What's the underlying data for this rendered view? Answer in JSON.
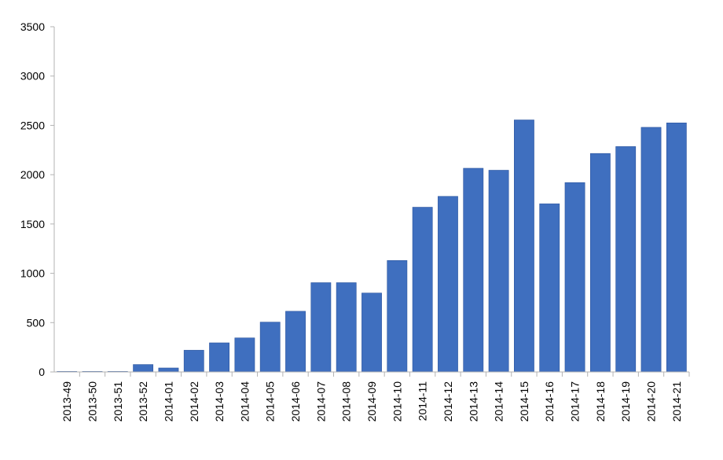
{
  "chart_data": {
    "type": "bar",
    "title": "",
    "xlabel": "",
    "ylabel": "",
    "ylim": [
      0,
      3500
    ],
    "yticks": [
      0,
      500,
      1000,
      1500,
      2000,
      2500,
      3000,
      3500
    ],
    "grid": false,
    "legend": "none",
    "bar_color": "#3f6fbf",
    "bar_edge_color": "#2c559e",
    "axis_color": "#b3b3b3",
    "categories": [
      "2013-49",
      "2013-50",
      "2013-51",
      "2013-52",
      "2014-01",
      "2014-02",
      "2014-03",
      "2014-04",
      "2014-05",
      "2014-06",
      "2014-07",
      "2014-08",
      "2014-09",
      "2014-10",
      "2014-11",
      "2014-12",
      "2014-13",
      "2014-14",
      "2014-15",
      "2014-16",
      "2014-17",
      "2014-18",
      "2014-19",
      "2014-20",
      "2014-21"
    ],
    "values": [
      3,
      3,
      3,
      75,
      40,
      220,
      295,
      345,
      505,
      615,
      905,
      905,
      800,
      1130,
      1670,
      1780,
      2065,
      2045,
      2555,
      1705,
      1920,
      2215,
      2285,
      2480,
      2525
    ]
  }
}
